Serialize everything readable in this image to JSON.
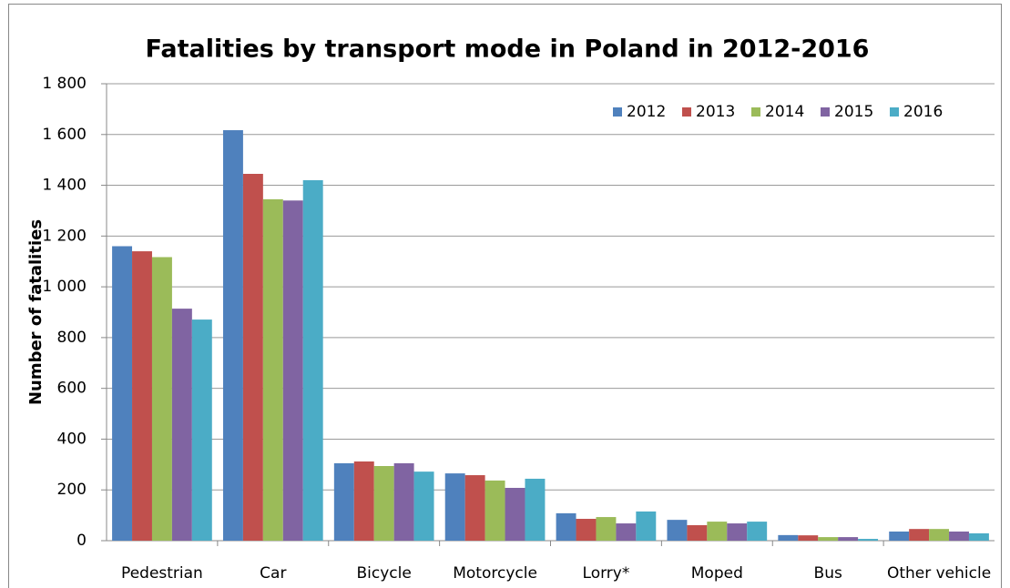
{
  "chart_data": {
    "type": "bar",
    "title": "Fatalities by transport mode in Poland in 2012-2016",
    "y_label": "Number of fatalities",
    "categories": [
      "Pedestrian",
      "Car",
      "Bicycle",
      "Motorcycle",
      "Lorry*",
      "Moped",
      "Bus",
      "Other vehicle"
    ],
    "series": [
      {
        "name": "2012",
        "color": "#4f81bd",
        "values": [
          1160,
          1617,
          305,
          265,
          108,
          82,
          22,
          36
        ]
      },
      {
        "name": "2013",
        "color": "#c0504d",
        "values": [
          1140,
          1445,
          312,
          258,
          86,
          61,
          21,
          46
        ]
      },
      {
        "name": "2014",
        "color": "#9bbb59",
        "values": [
          1117,
          1345,
          294,
          237,
          93,
          75,
          14,
          46
        ]
      },
      {
        "name": "2015",
        "color": "#8064a2",
        "values": [
          914,
          1340,
          305,
          208,
          68,
          68,
          14,
          36
        ]
      },
      {
        "name": "2016",
        "color": "#4bacc6",
        "values": [
          871,
          1420,
          272,
          244,
          115,
          75,
          7,
          29
        ]
      }
    ],
    "ylim": [
      0,
      1800
    ],
    "yticks": [
      0,
      200,
      400,
      600,
      800,
      {
        "value": 1000,
        "label": "1 000"
      },
      {
        "value": 1200,
        "label": "1 200"
      },
      {
        "value": 1400,
        "label": "1 400"
      },
      {
        "value": 1600,
        "label": "1 600"
      },
      {
        "value": 1800,
        "label": "1 800"
      }
    ],
    "grid": true,
    "legend": "top-right"
  }
}
